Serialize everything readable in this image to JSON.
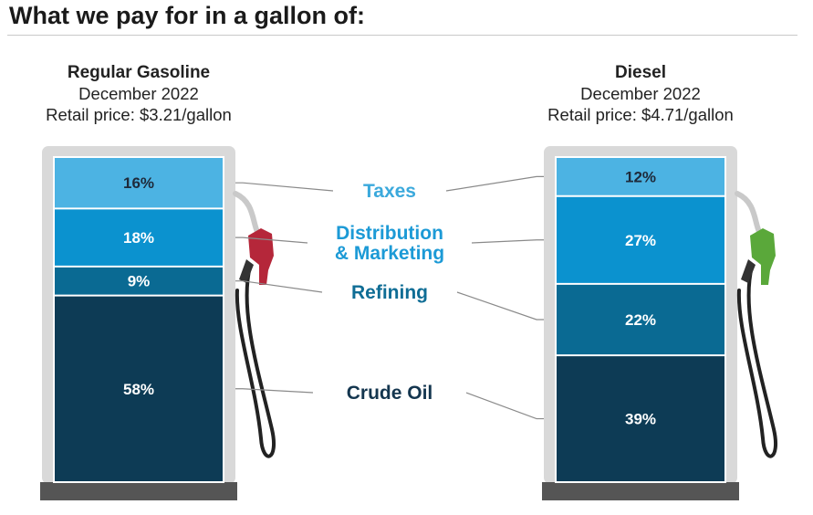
{
  "title": "What we pay for in a gallon of:",
  "chart_data": {
    "type": "bar",
    "stacked": true,
    "percent": true,
    "categories": [
      "Taxes",
      "Distribution & Marketing",
      "Refining",
      "Crude Oil"
    ],
    "category_label_lines": [
      [
        "Taxes"
      ],
      [
        "Distribution",
        "& Marketing"
      ],
      [
        "Refining"
      ],
      [
        "Crude Oil"
      ]
    ],
    "colors": {
      "Taxes": "#4cb3e3",
      "Distribution & Marketing": "#0b92cf",
      "Refining": "#0a6a93",
      "Crude Oil": "#0d3b55"
    },
    "label_colors": {
      "Taxes": "#3ba9dc",
      "Distribution & Marketing": "#1c9ad6",
      "Refining": "#0f6d95",
      "Crude Oil": "#14364f"
    },
    "nozzle_colors": {
      "gasoline": "#b5273a",
      "diesel": "#5aa83a"
    },
    "pumps": [
      {
        "id": "gasoline",
        "fuel": "Regular Gasoline",
        "period": "December 2022",
        "price_text": "Retail price: $3.21/gallon",
        "values": [
          16,
          18,
          9,
          58
        ]
      },
      {
        "id": "diesel",
        "fuel": "Diesel",
        "period": "December 2022",
        "price_text": "Retail price: $4.71/gallon",
        "values": [
          12,
          27,
          22,
          39
        ]
      }
    ]
  }
}
